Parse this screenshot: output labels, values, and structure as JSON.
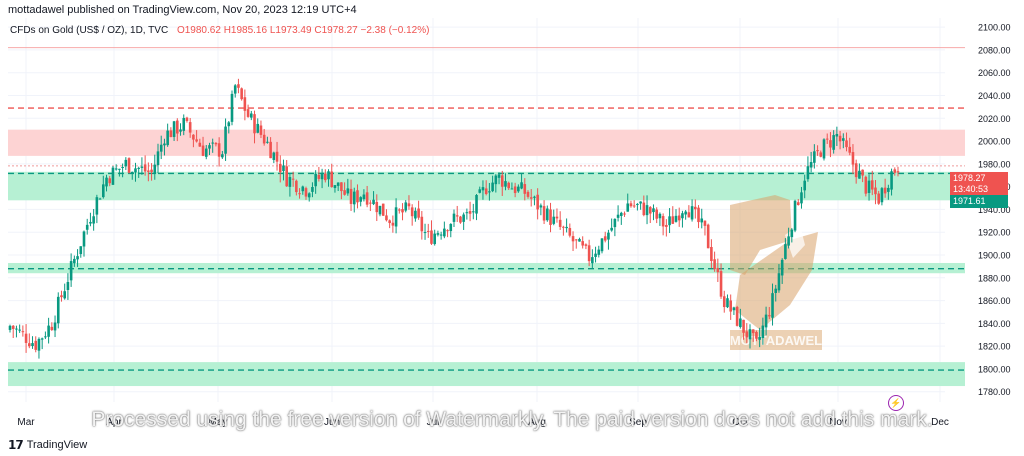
{
  "header": {
    "published": "mottadawel published on TradingView.com, Nov 20, 2023 12:19 UTC+4",
    "symbol": "CFDs on Gold (US$ / OZ), 1D, TVC",
    "open": "O1980.62",
    "high": "H1985.16",
    "low": "L1973.49",
    "close": "C1978.27",
    "change": "−2.38 (−0.12%)"
  },
  "footer": {
    "brand": "TradingView",
    "logo": "tv-logo-icon"
  },
  "watermark": {
    "logo_text": "MOTTADAWEL",
    "notice": "Processed using the free version of Watermarkly. The paid version does not add this mark."
  },
  "price_tags": {
    "last": "1978.27",
    "countdown": "13:40:53",
    "level": "1971.61"
  },
  "colors": {
    "up": "#089981",
    "down": "#ef5350",
    "resistance_zone": "#fdd3d3",
    "support_zone": "#b6f0d3",
    "grid": "#f0f3fa"
  },
  "chart_data": {
    "type": "candlestick",
    "title": "CFDs on Gold (US$ / OZ), 1D, TVC",
    "y_ticks": [
      1780,
      1800,
      1820,
      1840,
      1860,
      1880,
      1900,
      1920,
      1940,
      1960,
      1980,
      2000,
      2020,
      2040,
      2060,
      2080,
      2100
    ],
    "y_tick_labels": [
      "1780.00",
      "1800.00",
      "1820.00",
      "1840.00",
      "1860.00",
      "1880.00",
      "1900.00",
      "1920.00",
      "1940.00",
      "1960.00",
      "1980.00",
      "2000.00",
      "2020.00",
      "2040.00",
      "2060.00",
      "2080.00",
      "2100.00"
    ],
    "ylim": [
      1771,
      2108
    ],
    "x_labels": [
      "Mar",
      "Apr",
      "May",
      "Jun",
      "Jul",
      "Aug",
      "Sep",
      "Oct",
      "Nov",
      "Dec"
    ],
    "grid": true,
    "zones": [
      {
        "name": "resistance",
        "from": 1987,
        "to": 2010,
        "color": "#fdd3d3"
      },
      {
        "name": "support",
        "from": 1948,
        "to": 1973,
        "color": "#b6f0d3"
      },
      {
        "name": "support",
        "from": 1884,
        "to": 1893,
        "color": "#b6f0d3"
      },
      {
        "name": "support",
        "from": 1785,
        "to": 1806,
        "color": "#b6f0d3"
      }
    ],
    "levels": [
      {
        "value": 2029,
        "color": "#ef5350",
        "style": "dashed"
      },
      {
        "value": 1971.61,
        "color": "#089981",
        "style": "dashed"
      },
      {
        "value": 1888,
        "color": "#089981",
        "style": "dashed"
      },
      {
        "value": 1799,
        "color": "#089981",
        "style": "dashed"
      },
      {
        "value": 2082,
        "color": "#f7a9a9",
        "style": "solid"
      },
      {
        "value": 1978.27,
        "color": "#ef9a9a",
        "style": "dotted"
      }
    ],
    "close_anchors": [
      [
        0,
        1838
      ],
      [
        8,
        1822
      ],
      [
        13,
        1840
      ],
      [
        18,
        1880
      ],
      [
        25,
        1935
      ],
      [
        30,
        1968
      ],
      [
        36,
        1980
      ],
      [
        44,
        1972
      ],
      [
        48,
        2005
      ],
      [
        54,
        2015
      ],
      [
        60,
        1993
      ],
      [
        66,
        1992
      ],
      [
        70,
        2048
      ],
      [
        74,
        2022
      ],
      [
        80,
        1998
      ],
      [
        86,
        1968
      ],
      [
        92,
        1958
      ],
      [
        98,
        1972
      ],
      [
        106,
        1948
      ],
      [
        110,
        1955
      ],
      [
        118,
        1932
      ],
      [
        124,
        1940
      ],
      [
        130,
        1915
      ],
      [
        137,
        1930
      ],
      [
        143,
        1935
      ],
      [
        148,
        1960
      ],
      [
        152,
        1968
      ],
      [
        156,
        1960
      ],
      [
        160,
        1955
      ],
      [
        167,
        1935
      ],
      [
        174,
        1915
      ],
      [
        180,
        1898
      ],
      [
        186,
        1920
      ],
      [
        192,
        1945
      ],
      [
        198,
        1940
      ],
      [
        204,
        1925
      ],
      [
        210,
        1945
      ],
      [
        216,
        1920
      ],
      [
        222,
        1860
      ],
      [
        228,
        1835
      ],
      [
        232,
        1820
      ],
      [
        237,
        1860
      ],
      [
        242,
        1920
      ],
      [
        247,
        1970
      ],
      [
        252,
        1993
      ],
      [
        257,
        2005
      ],
      [
        262,
        1980
      ],
      [
        266,
        1960
      ],
      [
        270,
        1950
      ],
      [
        274,
        1972
      ],
      [
        276,
        1978
      ]
    ]
  }
}
